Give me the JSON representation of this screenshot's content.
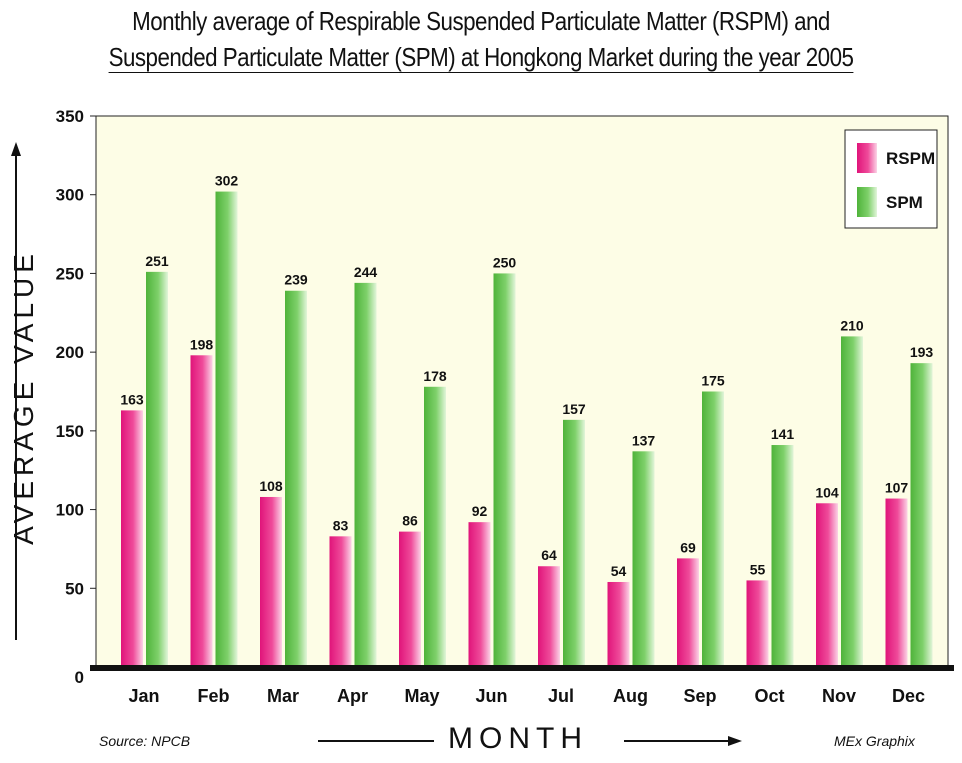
{
  "chart_data": {
    "type": "bar",
    "title_line1": "Monthly average of Respirable Suspended Particulate Matter (RSPM) and",
    "title_line2": "Suspended Particulate Matter (SPM) at Hongkong Market during the year 2005",
    "xlabel": "MONTH",
    "ylabel": "AVERAGE VALUE",
    "categories": [
      "Jan",
      "Feb",
      "Mar",
      "Apr",
      "May",
      "Jun",
      "Jul",
      "Aug",
      "Sep",
      "Oct",
      "Nov",
      "Dec"
    ],
    "series": [
      {
        "name": "RSPM",
        "values": [
          163,
          198,
          108,
          83,
          86,
          92,
          64,
          54,
          69,
          55,
          104,
          107
        ]
      },
      {
        "name": "SPM",
        "values": [
          251,
          302,
          239,
          244,
          178,
          250,
          157,
          137,
          175,
          141,
          210,
          193
        ]
      }
    ],
    "ylim": [
      0,
      350
    ],
    "yticks": [
      0,
      50,
      100,
      150,
      200,
      250,
      300,
      350
    ],
    "legend_position": "top-right",
    "grid": false,
    "colors": {
      "RSPM": "#e8197f",
      "SPM": "#62c24a",
      "plot_background": "#fdfde6"
    },
    "source": "Source: NPCB",
    "credit": "MEx Graphix"
  }
}
